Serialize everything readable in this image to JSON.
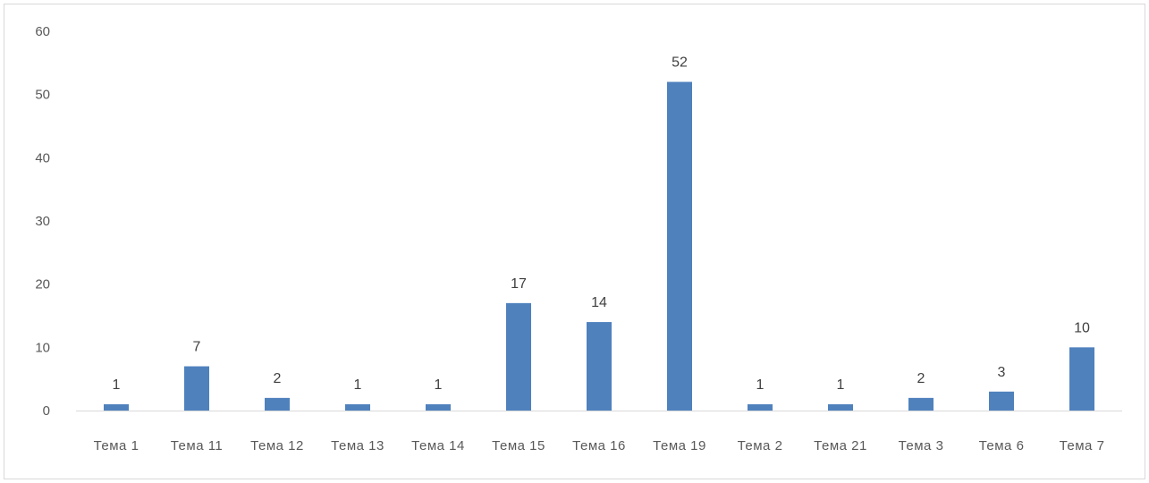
{
  "chart_data": {
    "type": "bar",
    "title": "",
    "xlabel": "",
    "ylabel": "",
    "categories": [
      "Тема 1",
      "Тема 11",
      "Тема 12",
      "Тема 13",
      "Тема 14",
      "Тема 15",
      "Тема 16",
      "Тема 19",
      "Тема 2",
      "Тема 21",
      "Тема 3",
      "Тема 6",
      "Тема 7"
    ],
    "values": [
      1,
      7,
      2,
      1,
      1,
      17,
      14,
      52,
      1,
      1,
      2,
      3,
      10
    ],
    "ylim": [
      0,
      60
    ],
    "yticks": [
      0,
      10,
      20,
      30,
      40,
      50,
      60
    ],
    "data_labels": true,
    "grid": false,
    "legend": "none",
    "colors": {
      "bar": "#4f81bd",
      "axis": "#d9d9d9",
      "text": "#595959"
    }
  }
}
